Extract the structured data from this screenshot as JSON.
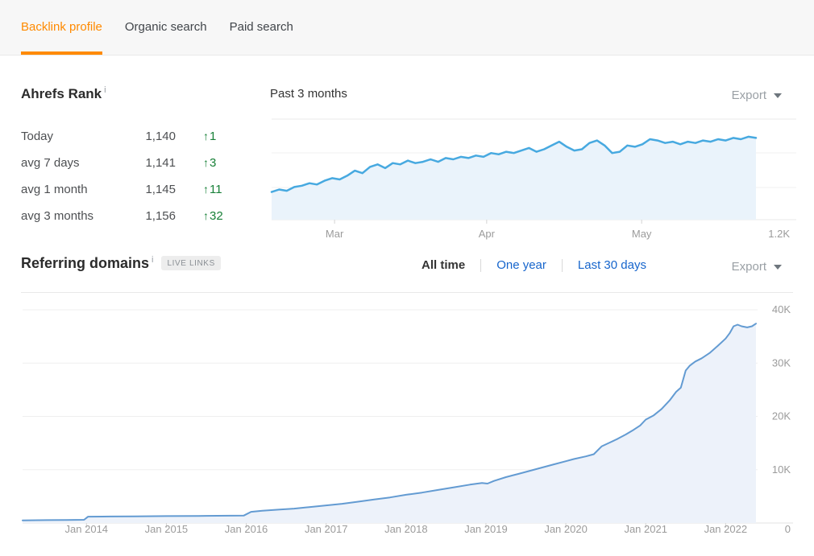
{
  "tabs": [
    {
      "label": "Backlink profile",
      "active": true
    },
    {
      "label": "Organic search",
      "active": false
    },
    {
      "label": "Paid search",
      "active": false
    }
  ],
  "ahrefs_rank": {
    "title": "Ahrefs Rank",
    "info_icon": "i",
    "delta_arrow": "↑",
    "rows": [
      {
        "label": "Today",
        "value": "1,140",
        "delta": "1"
      },
      {
        "label": "avg 7 days",
        "value": "1,141",
        "delta": "3"
      },
      {
        "label": "avg 1 month",
        "value": "1,145",
        "delta": "11"
      },
      {
        "label": "avg 3 months",
        "value": "1,156",
        "delta": "32"
      }
    ]
  },
  "rank_chart_header": {
    "title": "Past 3 months",
    "export_label": "Export"
  },
  "referring_domains": {
    "title": "Referring domains",
    "info_icon": "i",
    "badge": "LIVE LINKS",
    "filters": [
      {
        "label": "All time",
        "active": true
      },
      {
        "label": "One year",
        "active": false
      },
      {
        "label": "Last 30 days",
        "active": false
      }
    ],
    "export_label": "Export"
  },
  "colors": {
    "accent_orange": "#ff8a00",
    "link_blue": "#1665cc",
    "positive_green": "#188038",
    "rank_line": "#47a9e0",
    "rank_fill": "#eaf3fb",
    "domains_line": "#639bd2",
    "domains_fill": "#edf2fa",
    "grid": "#eeeeee",
    "axis_text": "#9b9b9b"
  },
  "chart_data": [
    {
      "name": "ahrefs-rank-past-3-months",
      "type": "line",
      "title": "Past 3 months",
      "ylabel": "Ahrefs Rank (lower rank plots higher; axis inverted)",
      "ylim": [
        1125,
        1205
      ],
      "y_inverted": true,
      "right_axis_label": "1.2K",
      "legend": "none",
      "grid": "horizontal",
      "xticks": [
        {
          "label": "Mar",
          "f": 0.13
        },
        {
          "label": "Apr",
          "f": 0.444
        },
        {
          "label": "May",
          "f": 0.764
        }
      ],
      "values": [
        1183,
        1181,
        1182,
        1179,
        1178,
        1176,
        1177,
        1174,
        1172,
        1173,
        1170,
        1166,
        1168,
        1163,
        1161,
        1164,
        1160,
        1161,
        1158,
        1160,
        1159,
        1157,
        1159,
        1156,
        1157,
        1155,
        1156,
        1154,
        1155,
        1152,
        1153,
        1151,
        1152,
        1150,
        1148,
        1151,
        1149,
        1146,
        1143,
        1147,
        1150,
        1149,
        1144,
        1142,
        1146,
        1152,
        1151,
        1146,
        1147,
        1145,
        1141,
        1142,
        1144,
        1143,
        1145,
        1143,
        1144,
        1142,
        1143,
        1141,
        1142,
        1140,
        1141,
        1139,
        1140
      ]
    },
    {
      "name": "referring-domains-all-time",
      "type": "area",
      "ylabel": "Referring domains",
      "unit": "K",
      "ylim": [
        0,
        40
      ],
      "yticks": [
        {
          "label": "10K",
          "v": 10
        },
        {
          "label": "20K",
          "v": 20
        },
        {
          "label": "30K",
          "v": 30
        },
        {
          "label": "40K",
          "v": 40
        }
      ],
      "zero_label": "0",
      "legend": "none",
      "grid": "horizontal",
      "xlim": [
        2013.2,
        2022.38
      ],
      "xticks": [
        {
          "label": "Jan 2014",
          "x": 2014
        },
        {
          "label": "Jan 2015",
          "x": 2015
        },
        {
          "label": "Jan 2016",
          "x": 2016
        },
        {
          "label": "Jan 2017",
          "x": 2017
        },
        {
          "label": "Jan 2018",
          "x": 2018
        },
        {
          "label": "Jan 2019",
          "x": 2019
        },
        {
          "label": "Jan 2020",
          "x": 2020
        },
        {
          "label": "Jan 2021",
          "x": 2021
        },
        {
          "label": "Jan 2022",
          "x": 2022
        }
      ],
      "points": [
        [
          2013.2,
          0.5
        ],
        [
          2013.5,
          0.55
        ],
        [
          2013.75,
          0.58
        ],
        [
          2013.97,
          0.6
        ],
        [
          2014.02,
          1.2
        ],
        [
          2014.3,
          1.22
        ],
        [
          2014.6,
          1.25
        ],
        [
          2015.0,
          1.3
        ],
        [
          2015.4,
          1.33
        ],
        [
          2015.8,
          1.38
        ],
        [
          2015.97,
          1.4
        ],
        [
          2016.06,
          2.1
        ],
        [
          2016.2,
          2.3
        ],
        [
          2016.4,
          2.5
        ],
        [
          2016.6,
          2.7
        ],
        [
          2016.8,
          3.0
        ],
        [
          2017.0,
          3.3
        ],
        [
          2017.2,
          3.6
        ],
        [
          2017.4,
          4.0
        ],
        [
          2017.6,
          4.4
        ],
        [
          2017.8,
          4.8
        ],
        [
          2018.0,
          5.3
        ],
        [
          2018.2,
          5.7
        ],
        [
          2018.4,
          6.2
        ],
        [
          2018.6,
          6.7
        ],
        [
          2018.8,
          7.2
        ],
        [
          2018.95,
          7.5
        ],
        [
          2019.02,
          7.4
        ],
        [
          2019.1,
          7.9
        ],
        [
          2019.25,
          8.6
        ],
        [
          2019.4,
          9.2
        ],
        [
          2019.55,
          9.8
        ],
        [
          2019.7,
          10.4
        ],
        [
          2019.85,
          11.0
        ],
        [
          2020.0,
          11.6
        ],
        [
          2020.1,
          12.0
        ],
        [
          2020.25,
          12.5
        ],
        [
          2020.35,
          12.9
        ],
        [
          2020.45,
          14.4
        ],
        [
          2020.55,
          15.1
        ],
        [
          2020.65,
          15.8
        ],
        [
          2020.75,
          16.6
        ],
        [
          2020.85,
          17.5
        ],
        [
          2020.93,
          18.3
        ],
        [
          2021.0,
          19.4
        ],
        [
          2021.1,
          20.2
        ],
        [
          2021.2,
          21.4
        ],
        [
          2021.3,
          23.0
        ],
        [
          2021.38,
          24.6
        ],
        [
          2021.44,
          25.4
        ],
        [
          2021.5,
          28.6
        ],
        [
          2021.55,
          29.5
        ],
        [
          2021.62,
          30.3
        ],
        [
          2021.7,
          30.9
        ],
        [
          2021.8,
          31.9
        ],
        [
          2021.9,
          33.2
        ],
        [
          2022.0,
          34.6
        ],
        [
          2022.05,
          35.6
        ],
        [
          2022.1,
          36.9
        ],
        [
          2022.15,
          37.2
        ],
        [
          2022.2,
          36.9
        ],
        [
          2022.27,
          36.7
        ],
        [
          2022.33,
          36.9
        ],
        [
          2022.38,
          37.4
        ]
      ]
    }
  ]
}
